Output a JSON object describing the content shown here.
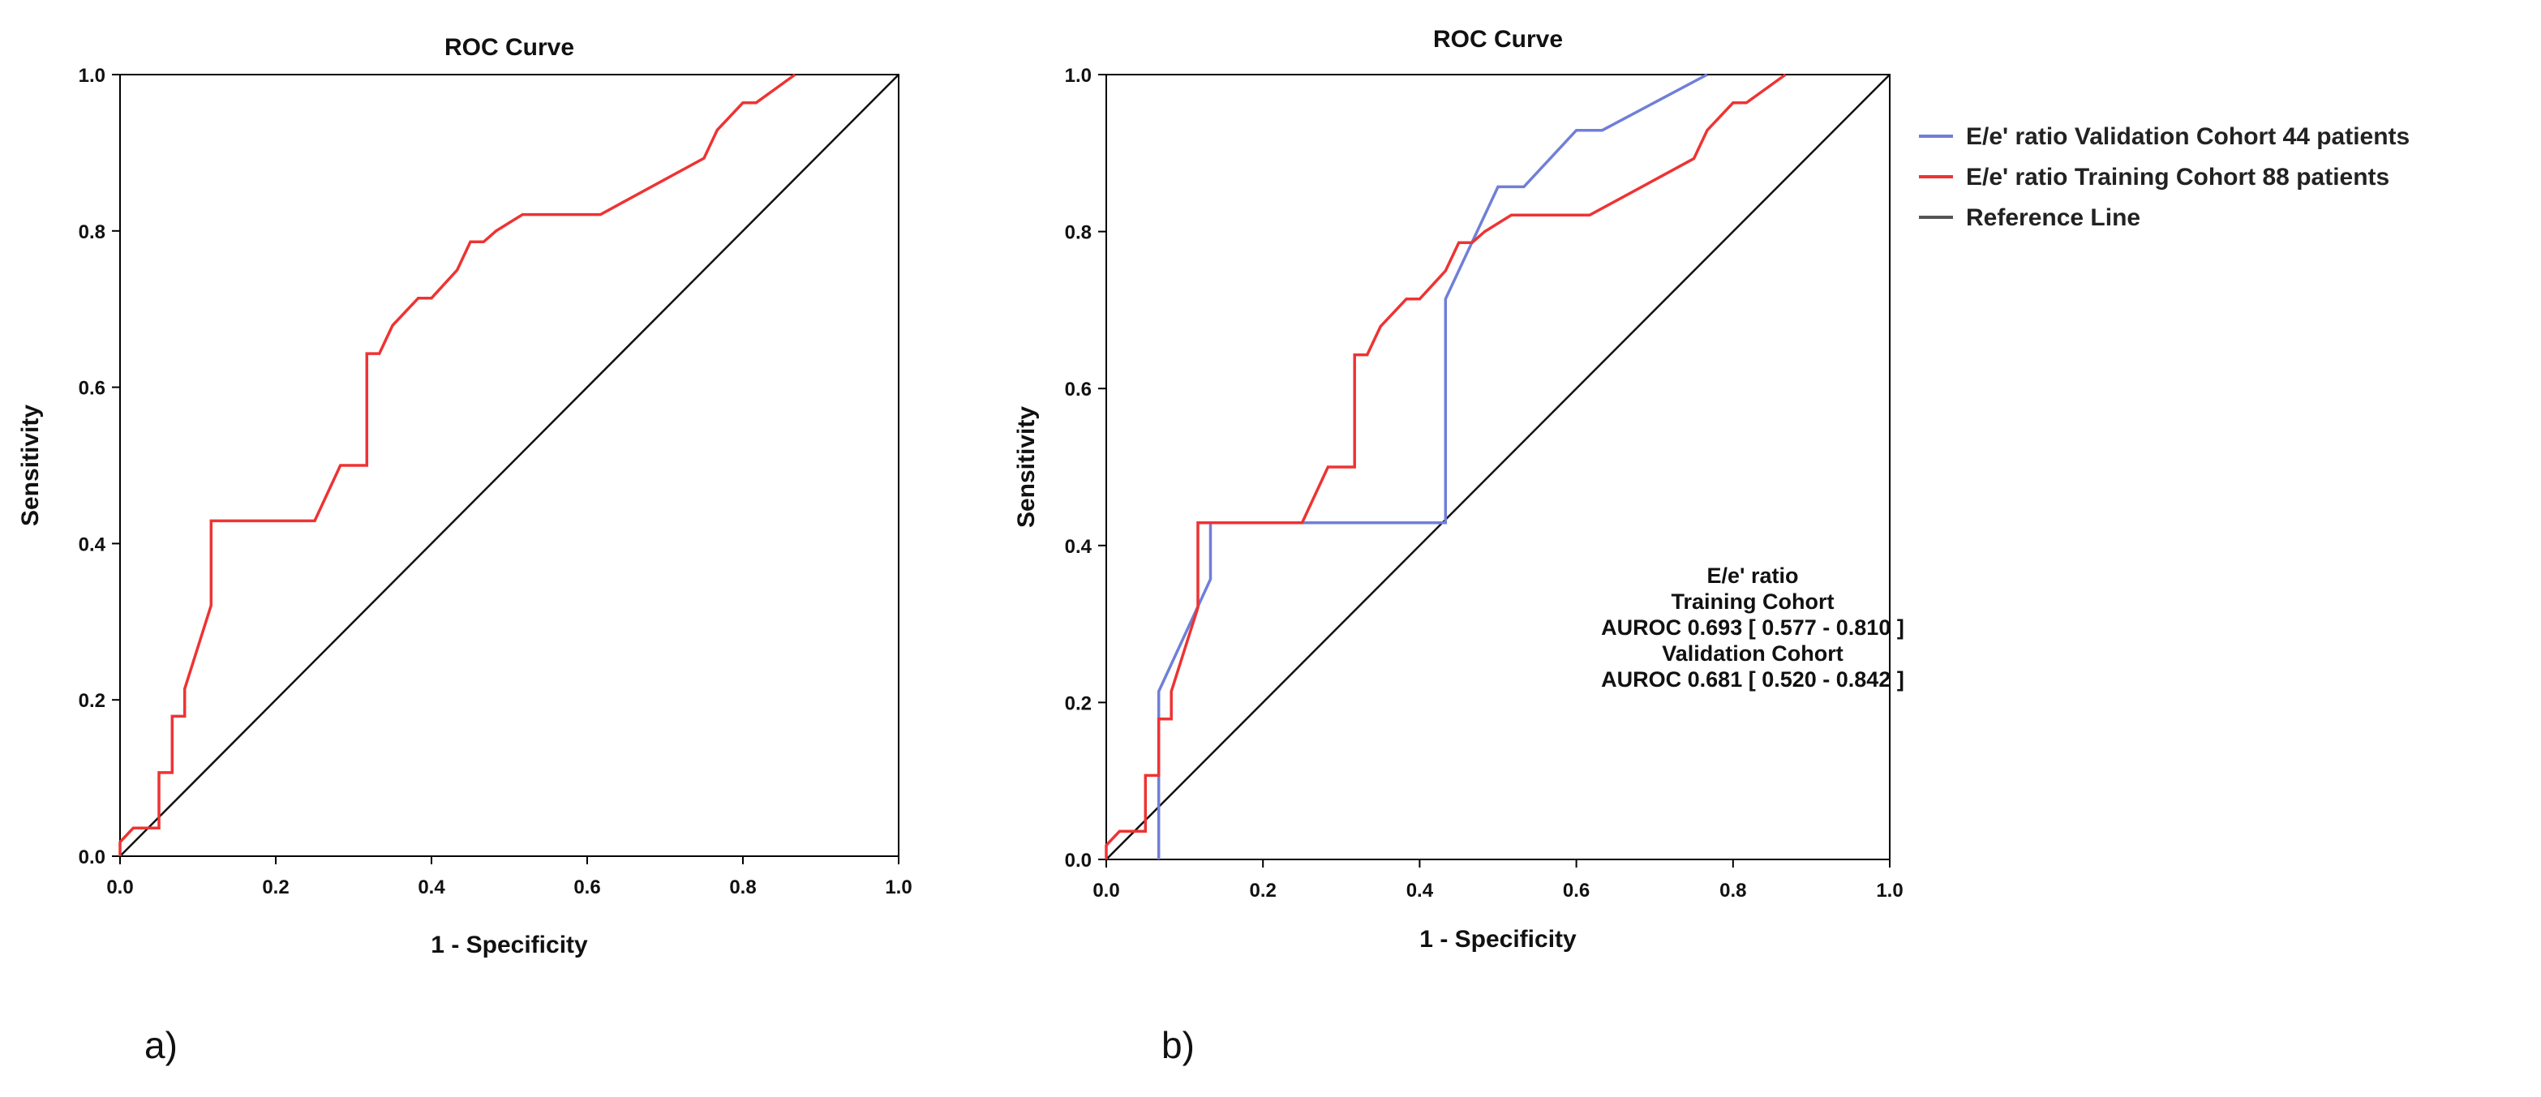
{
  "chart_data": [
    {
      "type": "line",
      "panel_label": "a)",
      "title": "ROC Curve",
      "xlabel": "1 - Specificity",
      "ylabel": "Sensitivity",
      "xlim": [
        0,
        1
      ],
      "ylim": [
        0,
        1
      ],
      "xticks": [
        "0.0",
        "0.2",
        "0.4",
        "0.6",
        "0.8",
        "1.0"
      ],
      "yticks": [
        "0.0",
        "0.2",
        "0.4",
        "0.6",
        "0.8",
        "1.0"
      ],
      "grid": false,
      "series": [
        {
          "name": "E/e' ratio Training Cohort 88 patients",
          "color": "#ee3333",
          "x": [
            0,
            0,
            0.017,
            0.017,
            0.05,
            0.05,
            0.067,
            0.067,
            0.083,
            0.083,
            0.117,
            0.117,
            0.25,
            0.283,
            0.317,
            0.317,
            0.333,
            0.35,
            0.383,
            0.4,
            0.433,
            0.45,
            0.467,
            0.483,
            0.517,
            0.617,
            0.75,
            0.767,
            0.8,
            0.817,
            0.867
          ],
          "y": [
            0,
            0.018,
            0.036,
            0.036,
            0.036,
            0.107,
            0.107,
            0.179,
            0.179,
            0.214,
            0.321,
            0.429,
            0.429,
            0.5,
            0.5,
            0.643,
            0.643,
            0.679,
            0.714,
            0.714,
            0.75,
            0.786,
            0.786,
            0.8,
            0.821,
            0.821,
            0.893,
            0.929,
            0.964,
            0.964,
            1.0
          ]
        },
        {
          "name": "Reference Line",
          "color": "#111111",
          "x": [
            0,
            1
          ],
          "y": [
            0,
            1
          ]
        }
      ]
    },
    {
      "type": "line",
      "panel_label": "b)",
      "title": "ROC Curve",
      "xlabel": "1 - Specificity",
      "ylabel": "Sensitivity",
      "xlim": [
        0,
        1
      ],
      "ylim": [
        0,
        1
      ],
      "xticks": [
        "0.0",
        "0.2",
        "0.4",
        "0.6",
        "0.8",
        "1.0"
      ],
      "yticks": [
        "0.0",
        "0.2",
        "0.4",
        "0.6",
        "0.8",
        "1.0"
      ],
      "grid": false,
      "legend_position": "right",
      "legend": [
        {
          "label": "E/e' ratio Validation Cohort 44 patients",
          "color": "#6f7fd8"
        },
        {
          "label": "E/e' ratio Training Cohort 88 patients",
          "color": "#ee3333"
        },
        {
          "label": "Reference Line",
          "color": "#555555"
        }
      ],
      "annotation": [
        "E/e'  ratio",
        "Training Cohort",
        "AUROC 0.693 [ 0.577 - 0.810 ]",
        "Validation Cohort",
        "AUROC 0.681 [ 0.520 - 0.842 ]"
      ],
      "series": [
        {
          "name": "E/e' ratio Validation Cohort 44 patients",
          "color": "#6f7fd8",
          "x": [
            0.067,
            0.067,
            0.133,
            0.133,
            0.433,
            0.433,
            0.5,
            0.533,
            0.6,
            0.633,
            0.767
          ],
          "y": [
            0,
            0.214,
            0.357,
            0.429,
            0.429,
            0.714,
            0.857,
            0.857,
            0.929,
            0.929,
            1.0
          ]
        },
        {
          "name": "E/e' ratio Training Cohort 88 patients",
          "color": "#ee3333",
          "x": [
            0,
            0,
            0.017,
            0.017,
            0.05,
            0.05,
            0.067,
            0.067,
            0.083,
            0.083,
            0.117,
            0.117,
            0.25,
            0.283,
            0.317,
            0.317,
            0.333,
            0.35,
            0.383,
            0.4,
            0.433,
            0.45,
            0.467,
            0.483,
            0.517,
            0.617,
            0.75,
            0.767,
            0.8,
            0.817,
            0.867
          ],
          "y": [
            0,
            0.018,
            0.036,
            0.036,
            0.036,
            0.107,
            0.107,
            0.179,
            0.179,
            0.214,
            0.321,
            0.429,
            0.429,
            0.5,
            0.5,
            0.643,
            0.643,
            0.679,
            0.714,
            0.714,
            0.75,
            0.786,
            0.786,
            0.8,
            0.821,
            0.821,
            0.893,
            0.929,
            0.964,
            0.964,
            1.0
          ]
        },
        {
          "name": "Reference Line",
          "color": "#111111",
          "x": [
            0,
            1
          ],
          "y": [
            0,
            1
          ]
        }
      ]
    }
  ]
}
